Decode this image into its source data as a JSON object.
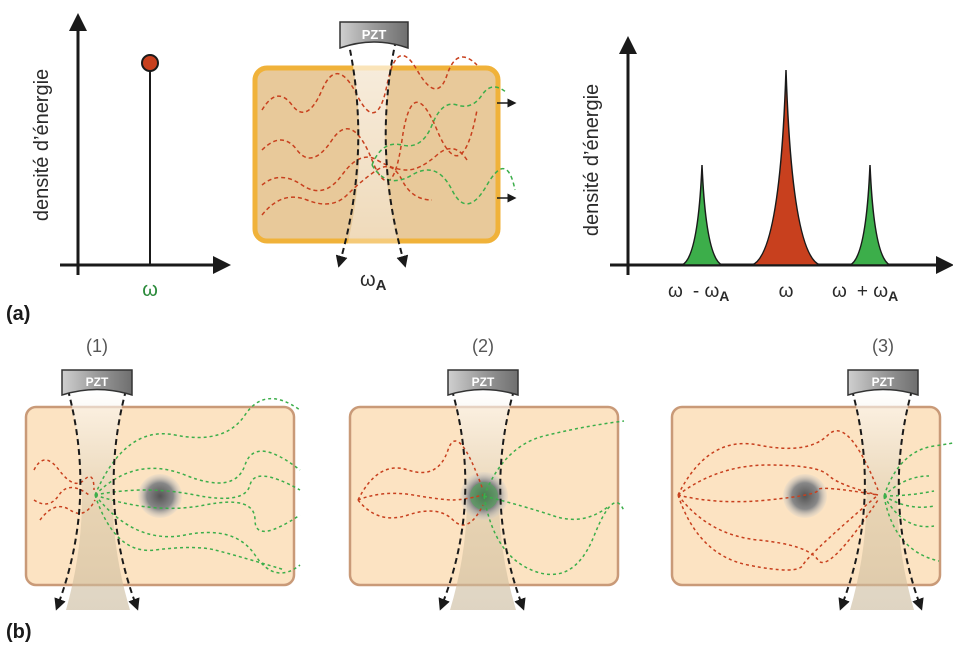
{
  "panel_a": {
    "label": "(a)",
    "left_plot": {
      "ylabel": "densité d’énergie",
      "xlabel": "ω"
    },
    "cell": {
      "transducer": "PZT",
      "focus_label_base": "ω",
      "focus_label_sub": "A"
    },
    "right_plot": {
      "ylabel": "densité d’énergie",
      "tick_minus_base": "ω",
      "tick_minus_sign": "- ω",
      "tick_minus_sub": "A",
      "tick_center": "ω",
      "tick_plus_base": "ω",
      "tick_plus_sign": "+ ω",
      "tick_plus_sub": "A"
    }
  },
  "panel_b": {
    "label": "(b)",
    "cells": [
      {
        "number": "(1)",
        "transducer": "PZT"
      },
      {
        "number": "(2)",
        "transducer": "PZT"
      },
      {
        "number": "(3)",
        "transducer": "PZT"
      }
    ]
  },
  "colors": {
    "axis": "#1a1a1a",
    "carrier_red": "#c8401e",
    "sideband_green": "#3cae4a",
    "cell_fill_a": "#e8c99a",
    "cell_border_a": "#f0b23a",
    "cell_fill_b": "#fce3c2",
    "cell_border_b": "#c99a78",
    "transducer": "#8a8a8a"
  }
}
